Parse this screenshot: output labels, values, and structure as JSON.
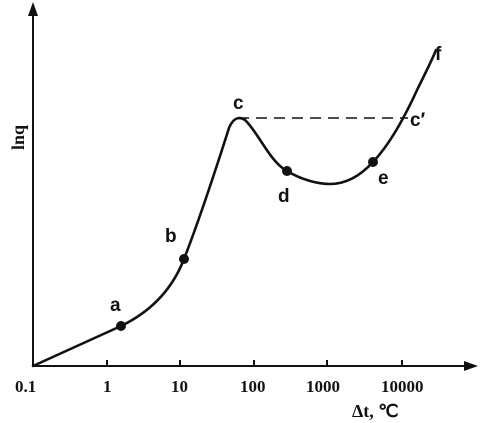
{
  "axes": {
    "y_label": "lnq",
    "x_label": "Δt, ℃"
  },
  "x_ticks": [
    {
      "label": "0.1",
      "value": 0.1
    },
    {
      "label": "1",
      "value": 1
    },
    {
      "label": "10",
      "value": 10
    },
    {
      "label": "100",
      "value": 100
    },
    {
      "label": "1000",
      "value": 1000
    },
    {
      "label": "10000",
      "value": 10000
    }
  ],
  "points": {
    "a": "a",
    "b": "b",
    "c": "c",
    "d": "d",
    "e": "e",
    "c_prime": "c′",
    "f": "f"
  },
  "colors": {
    "ink": "#111111",
    "background": "#ffffff"
  }
}
